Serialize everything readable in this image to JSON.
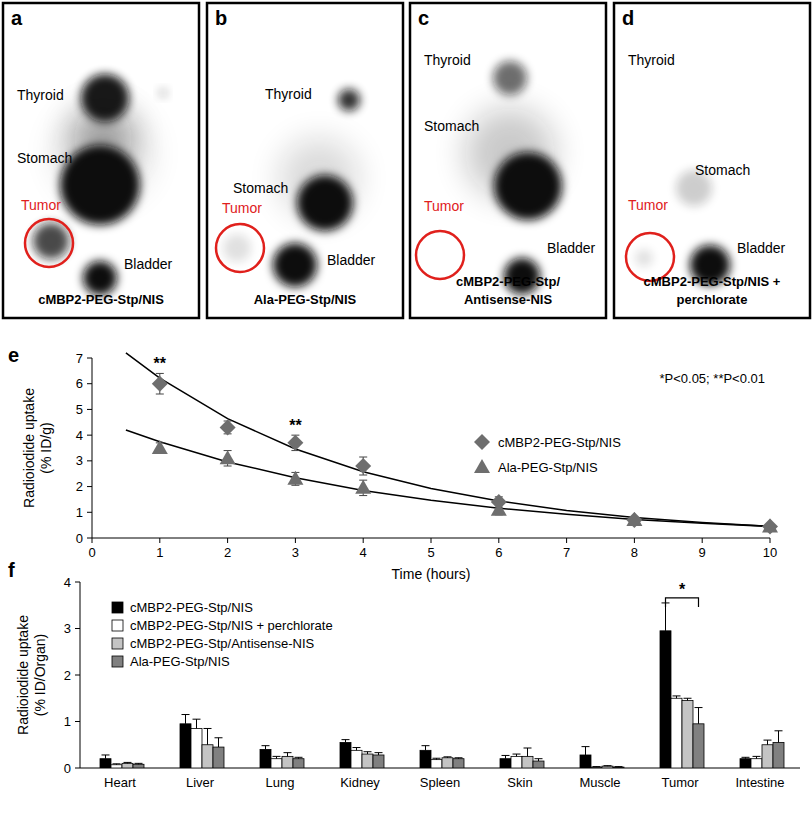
{
  "images": [
    {
      "panel_label": "a",
      "labels": [
        {
          "text": "Thyroid"
        },
        {
          "text": "Stomach"
        },
        {
          "text": "Tumor",
          "color": "#e0201c"
        },
        {
          "text": "Bladder"
        }
      ],
      "caption": [
        "cMBP2-PEG-Stp/NIS"
      ]
    },
    {
      "panel_label": "b",
      "labels": [
        {
          "text": "Thyroid"
        },
        {
          "text": "Stomach"
        },
        {
          "text": "Tumor",
          "color": "#e0201c"
        },
        {
          "text": "Bladder"
        }
      ],
      "caption": [
        "Ala-PEG-Stp/NIS"
      ]
    },
    {
      "panel_label": "c",
      "labels": [
        {
          "text": "Thyroid"
        },
        {
          "text": "Stomach"
        },
        {
          "text": "Tumor",
          "color": "#e0201c"
        },
        {
          "text": "Bladder"
        }
      ],
      "caption": [
        "cMBP2-PEG-Stp/",
        "Antisense-NIS"
      ]
    },
    {
      "panel_label": "d",
      "labels": [
        {
          "text": "Thyroid"
        },
        {
          "text": "Stomach"
        },
        {
          "text": "Tumor",
          "color": "#e0201c"
        },
        {
          "text": "Bladder"
        }
      ],
      "caption": [
        "cMBP2-PEG-Stp/NIS +",
        "perchlorate"
      ]
    }
  ],
  "chart_data": [
    {
      "type": "scatter",
      "panel_label": "e",
      "x_label": "Time (hours)",
      "y_label": "Radioiodide uptake (% ID/g)",
      "x": [
        1,
        2,
        3,
        4,
        6,
        8,
        10
      ],
      "xlim": [
        0,
        10
      ],
      "xticks": [
        0,
        1,
        2,
        3,
        4,
        5,
        6,
        7,
        8,
        9,
        10
      ],
      "ylim": [
        0,
        7
      ],
      "yticks": [
        0,
        1,
        2,
        3,
        4,
        5,
        6,
        7
      ],
      "legend": "right",
      "grid": false,
      "series": [
        {
          "name": "cMBP2-PEG-Stp/NIS",
          "color": "#6e6e6e",
          "marker": "diamond",
          "values": [
            6.0,
            4.3,
            3.7,
            2.8,
            1.4,
            0.7,
            0.45
          ],
          "errors": [
            0.4,
            0.25,
            0.3,
            0.35,
            0.2,
            0.1,
            0.05
          ],
          "trendline": {
            "x": [
              0.5,
              1,
              2,
              3,
              4,
              5,
              6,
              7,
              8,
              9,
              10
            ],
            "values": [
              7.2,
              6.22,
              4.64,
              3.46,
              2.58,
              1.93,
              1.44,
              1.07,
              0.8,
              0.6,
              0.45
            ]
          }
        },
        {
          "name": "Ala-PEG-Stp/NIS",
          "color": "#6e6e6e",
          "marker": "triangle",
          "values": [
            3.5,
            3.1,
            2.3,
            1.95,
            1.1,
            0.7,
            0.45
          ],
          "errors": [
            0.2,
            0.3,
            0.25,
            0.3,
            0.2,
            0.1,
            0.05
          ],
          "trendline": {
            "x": [
              0.5,
              1,
              2,
              3,
              4,
              5,
              6,
              7,
              8,
              9,
              10
            ],
            "values": [
              4.2,
              3.74,
              2.96,
              2.34,
              1.85,
              1.47,
              1.16,
              0.92,
              0.72,
              0.57,
              0.45
            ]
          }
        }
      ],
      "annotations": [
        {
          "text": "**",
          "x": 1
        },
        {
          "text": "**",
          "x": 3
        },
        {
          "text": "*P<0.05; **P<0.01"
        }
      ]
    },
    {
      "type": "bar",
      "panel_label": "f",
      "y_label": "Radioiodide uptake (% ID/Organ)",
      "categories": [
        "Heart",
        "Liver",
        "Lung",
        "Kidney",
        "Spleen",
        "Skin",
        "Muscle",
        "Tumor",
        "Intestine"
      ],
      "ylim": [
        0,
        4
      ],
      "yticks": [
        0,
        1,
        2,
        3,
        4
      ],
      "legend": "upper left",
      "grid": false,
      "series": [
        {
          "name": "cMBP2-PEG-Stp/NIS",
          "color": "#000000",
          "values": [
            0.2,
            0.95,
            0.4,
            0.55,
            0.38,
            0.2,
            0.28,
            2.95,
            0.2
          ],
          "errors": [
            0.08,
            0.2,
            0.08,
            0.06,
            0.1,
            0.07,
            0.18,
            0.6,
            0.03
          ]
        },
        {
          "name": "cMBP2-PEG-Stp/NIS + perchlorate",
          "color": "#ffffff",
          "values": [
            0.07,
            0.85,
            0.2,
            0.38,
            0.18,
            0.25,
            0.02,
            1.5,
            0.2
          ],
          "errors": [
            0.02,
            0.2,
            0.05,
            0.06,
            0.03,
            0.05,
            0.01,
            0.05,
            0.05
          ]
        },
        {
          "name": "cMBP2-PEG-Stp/Antisense-NIS",
          "color": "#c4c4c4",
          "values": [
            0.1,
            0.5,
            0.25,
            0.3,
            0.22,
            0.25,
            0.04,
            1.45,
            0.5
          ],
          "errors": [
            0.02,
            0.35,
            0.08,
            0.05,
            0.02,
            0.18,
            0.01,
            0.05,
            0.1
          ]
        },
        {
          "name": "Ala-PEG-Stp/NIS",
          "color": "#808080",
          "values": [
            0.08,
            0.45,
            0.2,
            0.28,
            0.2,
            0.15,
            0.02,
            0.95,
            0.55
          ],
          "errors": [
            0.02,
            0.2,
            0.03,
            0.05,
            0.02,
            0.05,
            0.01,
            0.35,
            0.25
          ]
        }
      ],
      "annotations": [
        {
          "text": "*",
          "category": "Tumor",
          "between": [
            "cMBP2-PEG-Stp/NIS",
            "Ala-PEG-Stp/NIS"
          ]
        }
      ]
    }
  ]
}
